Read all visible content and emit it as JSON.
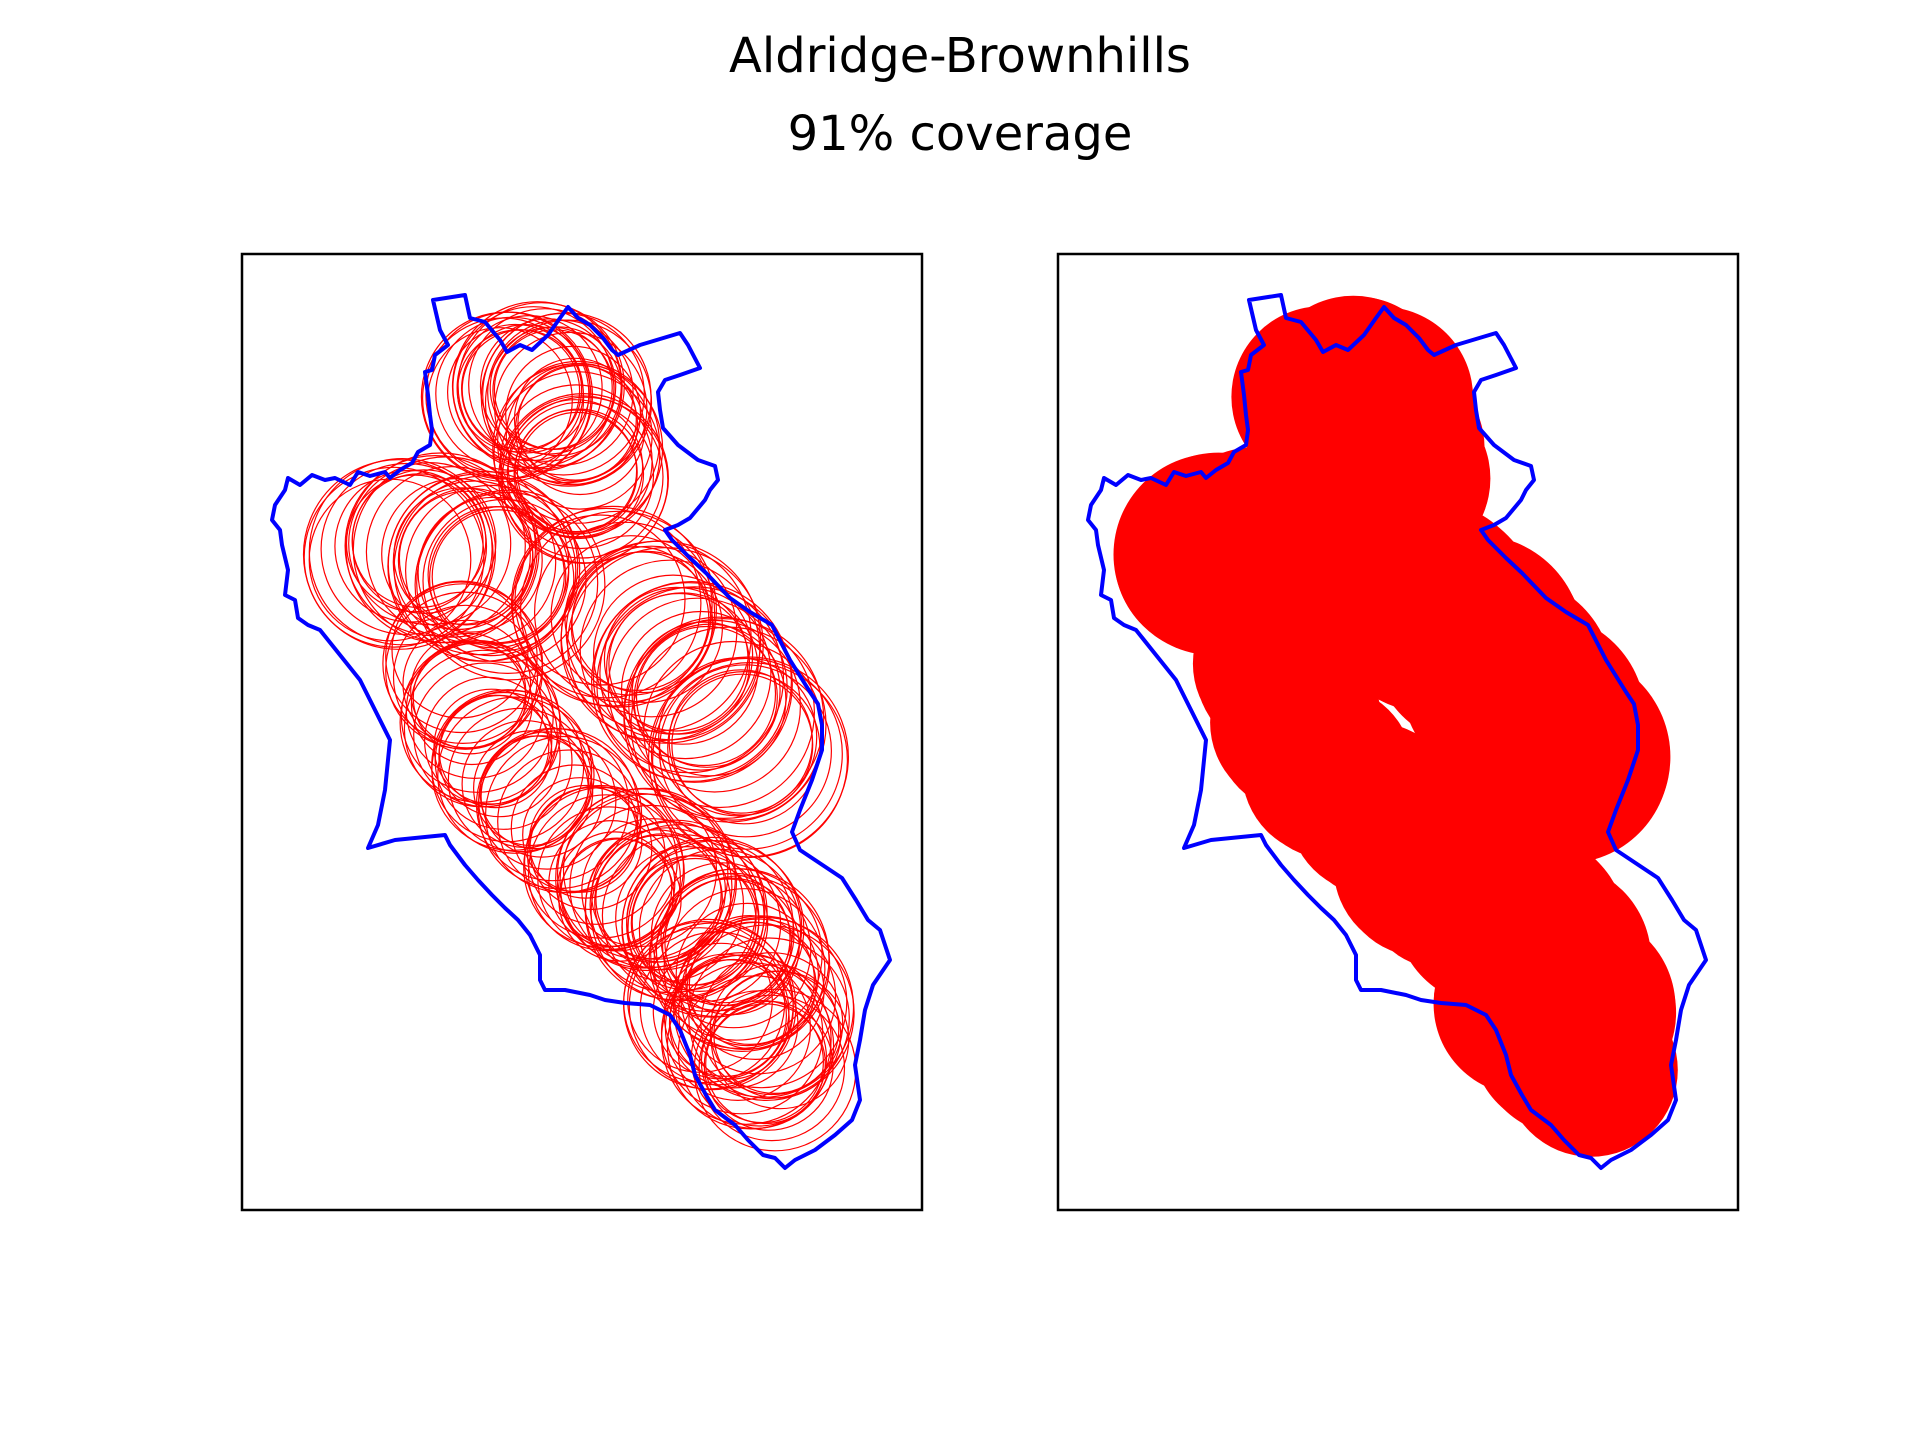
{
  "figure": {
    "title": "Aldridge-Brownhills",
    "subtitle": "91% coverage"
  },
  "panels": [
    {
      "id": "left",
      "style": "outline-circles"
    },
    {
      "id": "right",
      "style": "filled-union"
    }
  ],
  "colors": {
    "boundary": "#0000ff",
    "coverage": "#ff0000",
    "frame": "#000000",
    "background": "#ffffff"
  }
}
